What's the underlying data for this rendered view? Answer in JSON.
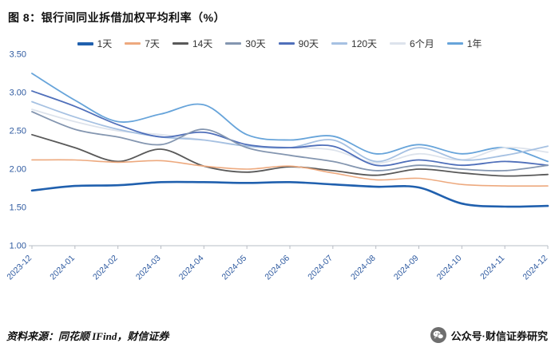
{
  "title": "图 8：银行间同业拆借加权平均利率（%）",
  "footer": {
    "source": "资料来源：同花顺 IFind，财信证券",
    "wechat": "公众号·财信证券研究"
  },
  "colors": {
    "axis_label": "#2e5aa0",
    "axis_line": "#b7bcc4"
  },
  "chart_data": {
    "type": "line",
    "title": "图 8：银行间同业拆借加权平均利率（%）",
    "xlabel": "",
    "ylabel": "",
    "ylim": [
      1.0,
      3.5
    ],
    "yticks": [
      1.0,
      1.5,
      2.0,
      2.5,
      3.0,
      3.5
    ],
    "grid": false,
    "legend_position": "top",
    "categories": [
      "2023-12",
      "2024-01",
      "2024-02",
      "2024-03",
      "2024-04",
      "2024-05",
      "2024-06",
      "2024-07",
      "2024-08",
      "2024-09",
      "2024-10",
      "2024-11",
      "2024-12"
    ],
    "series": [
      {
        "name": "1天",
        "color": "#2060ae",
        "width": 2.6,
        "values": [
          1.72,
          1.78,
          1.79,
          1.83,
          1.83,
          1.82,
          1.83,
          1.8,
          1.77,
          1.76,
          1.55,
          1.51,
          1.52
        ]
      },
      {
        "name": "7天",
        "color": "#eda97e",
        "width": 1.6,
        "values": [
          2.12,
          2.12,
          2.09,
          2.11,
          2.04,
          2.0,
          2.04,
          1.95,
          1.86,
          1.88,
          1.8,
          1.78,
          1.78
        ]
      },
      {
        "name": "14天",
        "color": "#595959",
        "width": 1.8,
        "values": [
          2.45,
          2.28,
          2.1,
          2.26,
          2.04,
          1.96,
          2.03,
          1.98,
          1.92,
          2.0,
          1.95,
          1.91,
          1.93
        ]
      },
      {
        "name": "30天",
        "color": "#8496b0",
        "width": 1.8,
        "values": [
          2.75,
          2.52,
          2.42,
          2.32,
          2.52,
          2.28,
          2.18,
          2.1,
          1.98,
          2.05,
          2.0,
          1.98,
          2.05
        ]
      },
      {
        "name": "90天",
        "color": "#4f6fba",
        "width": 1.8,
        "values": [
          3.02,
          2.82,
          2.58,
          2.42,
          2.48,
          2.32,
          2.28,
          2.3,
          2.05,
          2.12,
          2.05,
          2.1,
          2.05
        ]
      },
      {
        "name": "120天",
        "color": "#a6c1e2",
        "width": 1.8,
        "values": [
          2.88,
          2.68,
          2.52,
          2.42,
          2.38,
          2.3,
          2.28,
          2.38,
          2.1,
          2.28,
          2.12,
          2.18,
          2.3
        ]
      },
      {
        "name": "6个月",
        "color": "#dde3ec",
        "width": 1.8,
        "values": [
          2.78,
          2.62,
          2.5,
          2.45,
          2.38,
          2.3,
          2.28,
          2.25,
          2.08,
          2.2,
          2.12,
          2.28,
          2.22
        ]
      },
      {
        "name": "1年",
        "color": "#67a4da",
        "width": 1.8,
        "values": [
          3.25,
          2.9,
          2.62,
          2.72,
          2.84,
          2.45,
          2.38,
          2.43,
          2.2,
          2.32,
          2.2,
          2.28,
          2.1
        ]
      }
    ]
  }
}
